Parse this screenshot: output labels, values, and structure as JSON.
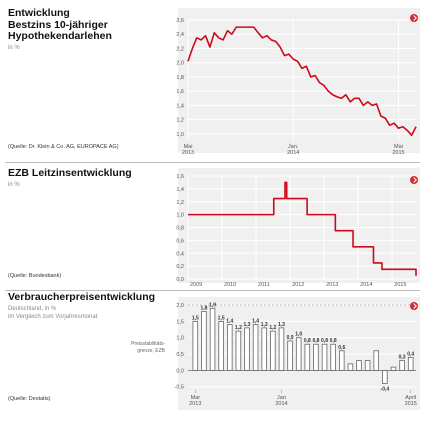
{
  "colors": {
    "line": "#cc0a1b",
    "bar_fill": "#ffffff",
    "bar_stroke": "#666666",
    "panel_bg": "#f0f0f0",
    "grid": "#ffffff"
  },
  "panels": [
    {
      "title": "Entwicklung\nBestzins 10-jähriger\nHypothekendarlehen",
      "unit": "in %",
      "source": "(Quelle: Dr. Klein & Co. AG, EUROPACE AG)",
      "icon": "arrow-right-icon"
    },
    {
      "title": "EZB Leitzinsentwicklung",
      "unit": "in %",
      "source": "(Quelle: Bundesbank)",
      "icon": "arrow-right-icon"
    },
    {
      "title": "Verbraucherpreisentwicklung",
      "unit": "Deutschland, in %\nim Vergleich zum Vorjahresmonat",
      "source": "(Quelle: Destatis)",
      "icon": "arrow-right-icon",
      "annotation": "Preisstabilitäts-\ngrenze, EZB"
    }
  ],
  "chart_data": [
    {
      "type": "line",
      "ylim": [
        0.9,
        2.6
      ],
      "yticks": [
        1.0,
        1.2,
        1.4,
        1.6,
        1.8,
        2.0,
        2.2,
        2.4,
        2.6
      ],
      "ytick_labels": [
        "1,0",
        "1,2",
        "1,4",
        "1,6",
        "1,8",
        "2,0",
        "2,2",
        "2,4",
        "2,6"
      ],
      "xlim": [
        0,
        26
      ],
      "xticks": [
        0,
        12,
        24
      ],
      "xtick_labels": [
        [
          "Mai",
          "2013"
        ],
        [
          "Jan.",
          "2014"
        ],
        [
          "Mai",
          "2015"
        ]
      ],
      "series": [
        {
          "x": [
            0,
            0.5,
            1,
            1.5,
            2,
            2.5,
            3,
            3.5,
            4,
            4.5,
            5,
            5.5,
            6,
            6.5,
            7,
            7.5,
            8,
            8.5,
            9,
            9.5,
            10,
            10.5,
            11,
            11.5,
            12,
            12.5,
            13,
            13.5,
            14,
            14.5,
            15,
            15.5,
            16,
            16.5,
            17,
            17.5,
            18,
            18.5,
            19,
            19.5,
            20,
            20.5,
            21,
            21.5,
            22,
            22.5,
            23,
            23.5,
            24,
            24.5,
            25,
            25.5,
            26
          ],
          "values": [
            2.02,
            2.2,
            2.35,
            2.32,
            2.38,
            2.22,
            2.42,
            2.35,
            2.32,
            2.45,
            2.4,
            2.5,
            2.5,
            2.5,
            2.5,
            2.5,
            2.42,
            2.35,
            2.38,
            2.32,
            2.3,
            2.22,
            2.1,
            2.12,
            2.05,
            2.02,
            1.92,
            1.95,
            1.8,
            1.82,
            1.72,
            1.68,
            1.6,
            1.55,
            1.52,
            1.5,
            1.55,
            1.45,
            1.5,
            1.5,
            1.4,
            1.45,
            1.4,
            1.42,
            1.25,
            1.22,
            1.12,
            1.15,
            1.08,
            1.1,
            1.05,
            0.98,
            1.1
          ]
        }
      ]
    },
    {
      "type": "line",
      "ylim": [
        0.0,
        1.6
      ],
      "yticks": [
        0.0,
        0.2,
        0.4,
        0.6,
        0.8,
        1.0,
        1.2,
        1.4,
        1.6
      ],
      "ytick_labels": [
        "0,0",
        "0,2",
        "0,4",
        "0,6",
        "0,8",
        "1,0",
        "1,2",
        "1,4",
        "1,6"
      ],
      "xlim": [
        2009,
        2015.7
      ],
      "xticks": [
        2009,
        2010,
        2011,
        2012,
        2013,
        2014,
        2015
      ],
      "xtick_labels": [
        "2009",
        "2010",
        "2011",
        "2012",
        "2013",
        "2014",
        "2015"
      ],
      "series": [
        {
          "x": [
            2009,
            2011.28,
            2011.52,
            2011.85,
            2011.9,
            2012.5,
            2013.33,
            2013.85,
            2014.45,
            2014.7,
            2015.7
          ],
          "values": [
            1.0,
            1.0,
            1.25,
            1.5,
            1.25,
            1.0,
            0.75,
            0.5,
            0.25,
            0.15,
            0.05
          ],
          "steps": true
        }
      ]
    },
    {
      "type": "bar",
      "ylim": [
        -0.6,
        2.0
      ],
      "yticks": [
        -0.5,
        0.0,
        0.5,
        1.0,
        1.5,
        2.0
      ],
      "ytick_labels": [
        "-0,5",
        "0,0",
        "0,5",
        "1,0",
        "1,5",
        "2,0"
      ],
      "reference_line": 2.0,
      "categories": [
        "Mär 2013",
        "Apr 2013",
        "Mai 2013",
        "Jun 2013",
        "Jul 2013",
        "Aug 2013",
        "Sep 2013",
        "Okt 2013",
        "Nov 2013",
        "Dez 2013",
        "Jan 2014",
        "Feb 2014",
        "Mär 2014",
        "Apr 2014",
        "Mai 2014",
        "Jun 2014",
        "Jul 2014",
        "Aug 2014",
        "Sep 2014",
        "Okt 2014",
        "Nov 2014",
        "Dez 2014",
        "Jan 2015",
        "Feb 2015",
        "Mär 2015",
        "Apr 2015"
      ],
      "values": [
        1.5,
        1.8,
        1.9,
        1.5,
        1.4,
        1.2,
        1.3,
        1.4,
        1.3,
        1.2,
        1.3,
        0.9,
        1.0,
        0.8,
        0.8,
        0.8,
        0.8,
        0.6,
        0.2,
        0.3,
        0.3,
        0.6,
        -0.4,
        0.1,
        0.3,
        0.4
      ],
      "labels": [
        "1,5",
        "1,8",
        "1,9",
        "1,5",
        "1,4",
        "1,2",
        "1,3",
        "1,4",
        "1,3",
        "1,2",
        "1,3",
        "0,9",
        "1,0",
        "0,8",
        "0,8",
        "0,8",
        "0,8",
        "0,6",
        "",
        "",
        "",
        "",
        "-0,4",
        "",
        "0,3",
        "0,4"
      ],
      "xtick_labels": [
        [
          "Mar",
          "2013"
        ],
        [
          "Jan",
          "2014"
        ],
        [
          "April",
          "2015"
        ]
      ],
      "xtick_indices": [
        0,
        10,
        25
      ]
    }
  ]
}
